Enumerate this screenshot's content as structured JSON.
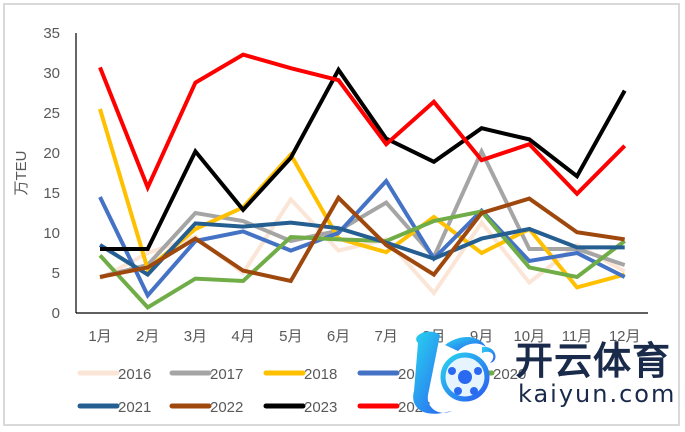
{
  "chart_data": {
    "type": "line",
    "title": "",
    "xlabel": "",
    "ylabel": "万TEU",
    "ylim": [
      0,
      35
    ],
    "yticks": [
      0,
      5,
      10,
      15,
      20,
      25,
      30,
      35
    ],
    "grid": false,
    "legend_position": "bottom",
    "categories": [
      "1月",
      "2月",
      "3月",
      "4月",
      "5月",
      "6月",
      "7月",
      "8月",
      "9月",
      "10月",
      "11月",
      "12月"
    ],
    "series": [
      {
        "name": "2016",
        "color": "#fbe5d6",
        "values": [
          4.3,
          7.5,
          9.5,
          5.0,
          14.2,
          7.8,
          9.2,
          2.5,
          11.3,
          3.8,
          8.5,
          5.2
        ]
      },
      {
        "name": "2017",
        "color": "#a5a5a5",
        "values": [
          4.5,
          6.0,
          12.5,
          11.5,
          9.0,
          10.3,
          13.8,
          7.0,
          20.2,
          8.0,
          8.0,
          6.0
        ]
      },
      {
        "name": "2018",
        "color": "#ffc000",
        "values": [
          25.5,
          5.5,
          10.5,
          13.2,
          19.8,
          9.3,
          7.6,
          12.0,
          7.5,
          10.5,
          3.2,
          4.8
        ]
      },
      {
        "name": "2019",
        "color": "#4472c4",
        "values": [
          14.5,
          2.2,
          9.0,
          10.2,
          7.8,
          10.0,
          16.5,
          6.8,
          12.8,
          6.5,
          7.5,
          4.5
        ]
      },
      {
        "name": "2020",
        "color": "#70ad47",
        "values": [
          7.2,
          0.7,
          4.3,
          4.0,
          9.5,
          9.2,
          9.0,
          11.5,
          12.7,
          5.7,
          4.5,
          9.0
        ]
      },
      {
        "name": "2021",
        "color": "#255e91",
        "values": [
          8.5,
          4.8,
          11.2,
          10.8,
          11.3,
          10.6,
          8.8,
          6.8,
          9.3,
          10.5,
          8.2,
          8.2
        ]
      },
      {
        "name": "2022",
        "color": "#9e480e",
        "values": [
          4.5,
          5.7,
          9.3,
          5.3,
          4.0,
          14.4,
          8.5,
          4.8,
          12.5,
          14.3,
          10.1,
          9.2
        ]
      },
      {
        "name": "2023",
        "color": "#000000",
        "values": [
          8.0,
          8.0,
          20.2,
          12.9,
          19.4,
          30.4,
          21.8,
          18.9,
          23.1,
          21.7,
          17.1,
          27.8
        ]
      },
      {
        "name": "2024",
        "color": "#ff0000",
        "values": [
          30.7,
          15.7,
          28.8,
          32.3,
          30.6,
          29.1,
          21.1,
          26.4,
          19.1,
          21.1,
          14.9,
          20.9
        ]
      }
    ]
  },
  "watermark": {
    "cn_text": "开云体育",
    "en_text": "kaiyun.com"
  }
}
